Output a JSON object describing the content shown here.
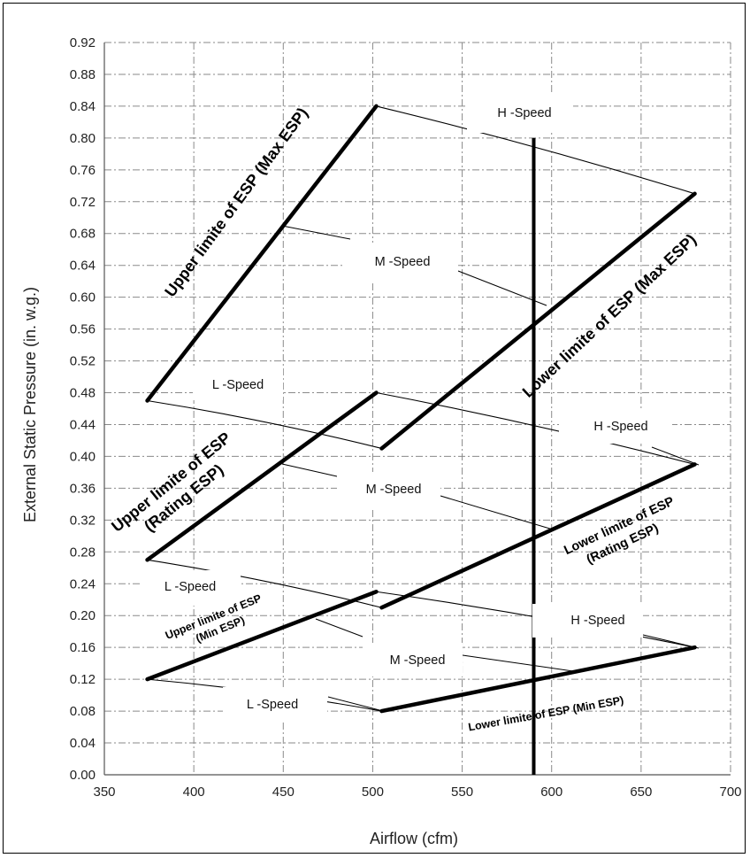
{
  "chart_data": {
    "type": "line",
    "xlabel": "Airflow (cfm)",
    "ylabel": "External Static Pressure (in. w.g.)",
    "xlim": [
      350,
      700
    ],
    "ylim": [
      0,
      0.92
    ],
    "x_ticks": [
      "350",
      "400",
      "450",
      "500",
      "550",
      "600",
      "650",
      "700"
    ],
    "y_ticks": [
      "0.00",
      "0.04",
      "0.08",
      "0.12",
      "0.16",
      "0.20",
      "0.24",
      "0.28",
      "0.32",
      "0.36",
      "0.40",
      "0.44",
      "0.48",
      "0.52",
      "0.56",
      "0.60",
      "0.64",
      "0.68",
      "0.72",
      "0.76",
      "0.80",
      "0.84",
      "0.88",
      "0.92"
    ],
    "grid": true,
    "vertical_line_x": 590,
    "limit_lines": [
      {
        "label": "Upper limite of ESP (Max ESP)",
        "x": [
          374,
          502
        ],
        "y": [
          0.47,
          0.84
        ]
      },
      {
        "label": "Lower limite of ESP (Max ESP)",
        "x": [
          505,
          680
        ],
        "y": [
          0.41,
          0.73
        ]
      },
      {
        "label": "Upper limite of ESP (Rating ESP)",
        "x": [
          374,
          502
        ],
        "y": [
          0.27,
          0.48
        ]
      },
      {
        "label": "Lower limite of ESP (Rating ESP)",
        "x": [
          505,
          680
        ],
        "y": [
          0.21,
          0.39
        ]
      },
      {
        "label": "Upper limite of ESP (Min ESP)",
        "x": [
          374,
          502
        ],
        "y": [
          0.12,
          0.23
        ]
      },
      {
        "label": "Lower limite of ESP (Min ESP)",
        "x": [
          505,
          680
        ],
        "y": [
          0.08,
          0.16
        ]
      }
    ],
    "speed_lines": [
      {
        "x": [
          374,
          505
        ],
        "y": [
          0.47,
          0.41
        ]
      },
      {
        "x": [
          502,
          680
        ],
        "y": [
          0.84,
          0.73
        ]
      },
      {
        "x": [
          374,
          505
        ],
        "y": [
          0.27,
          0.21
        ]
      },
      {
        "x": [
          502,
          680
        ],
        "y": [
          0.48,
          0.39
        ]
      },
      {
        "x": [
          374,
          505
        ],
        "y": [
          0.12,
          0.08
        ]
      },
      {
        "x": [
          502,
          680
        ],
        "y": [
          0.23,
          0.16
        ]
      }
    ],
    "speed_labels": {
      "max_esp": [
        "H -Speed",
        "M -Speed",
        "L -Speed"
      ],
      "rating_esp": [
        "H -Speed",
        "M -Speed",
        "L -Speed"
      ],
      "min_esp": [
        "H -Speed",
        "M -Speed",
        "L -Speed"
      ]
    },
    "limit_text": {
      "max_upper": "Upper limite of ESP (Max ESP)",
      "max_lower": "Lower limite of ESP (Max ESP)",
      "rating_upper_1": "Upper limite of ESP",
      "rating_upper_2": "(Rating ESP)",
      "rating_lower_1": "Lower limite of ESP",
      "rating_lower_2": "(Rating ESP)",
      "min_upper_1": "Upper limite of ESP",
      "min_upper_2": "(Min ESP)",
      "min_lower": "Lower limite of ESP (Min ESP)"
    }
  }
}
